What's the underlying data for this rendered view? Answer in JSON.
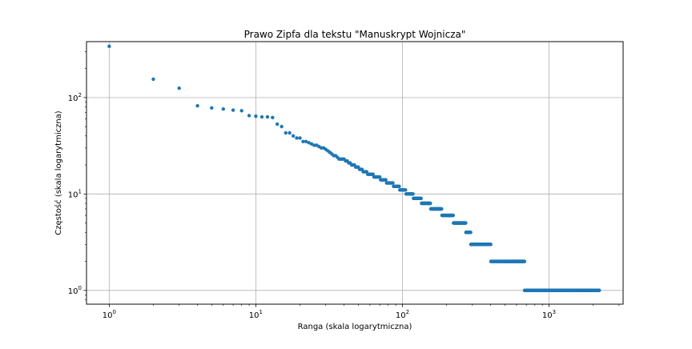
{
  "chart_data": {
    "type": "scatter",
    "title": "Prawo Zipfa dla tekstu \"Manuskrypt Wojnicza\"",
    "xlabel": "Ranga (skala logarytmiczna)",
    "ylabel": "Częstość (skala logarytmiczna)",
    "xscale": "log",
    "yscale": "log",
    "xlim": [
      0.7,
      3200
    ],
    "ylim": [
      0.72,
      380
    ],
    "grid": true,
    "marker_color": "#1f77b4",
    "x_ticks": [
      {
        "value": 1,
        "base": "10",
        "exp": "0"
      },
      {
        "value": 10,
        "base": "10",
        "exp": "1"
      },
      {
        "value": 100,
        "base": "10",
        "exp": "2"
      },
      {
        "value": 1000,
        "base": "10",
        "exp": "3"
      }
    ],
    "y_ticks": [
      {
        "value": 1,
        "base": "10",
        "exp": "0"
      },
      {
        "value": 10,
        "base": "10",
        "exp": "1"
      },
      {
        "value": 100,
        "base": "10",
        "exp": "2"
      }
    ],
    "points": [
      [
        1,
        340
      ],
      [
        2,
        155
      ],
      [
        3,
        125
      ],
      [
        4,
        82
      ],
      [
        5,
        78
      ],
      [
        6,
        76
      ],
      [
        7,
        74
      ],
      [
        8,
        73
      ],
      [
        9,
        65
      ],
      [
        10,
        64
      ],
      [
        11,
        63
      ],
      [
        12,
        63
      ],
      [
        13,
        62
      ],
      [
        14,
        53
      ],
      [
        15,
        50
      ],
      [
        16,
        43
      ],
      [
        17,
        43
      ],
      [
        18,
        40
      ],
      [
        19,
        38
      ],
      [
        20,
        38
      ],
      [
        21,
        35
      ],
      [
        22,
        35
      ],
      [
        23,
        34
      ],
      [
        24,
        33
      ],
      [
        25,
        32
      ],
      [
        26,
        32
      ],
      [
        27,
        31
      ],
      [
        28,
        30
      ],
      [
        29,
        30
      ],
      [
        30,
        29
      ],
      [
        31,
        28
      ],
      [
        32,
        27
      ],
      [
        33,
        26
      ],
      [
        34,
        25
      ],
      [
        35,
        25
      ],
      [
        36,
        24
      ],
      [
        37,
        23
      ],
      [
        38,
        23
      ],
      [
        39,
        23
      ],
      [
        40,
        23
      ],
      [
        41,
        22
      ],
      [
        42,
        22
      ],
      [
        43,
        21
      ],
      [
        44,
        21
      ],
      [
        45,
        20
      ],
      [
        46,
        20
      ],
      [
        47,
        20
      ],
      [
        48,
        19
      ],
      [
        49,
        19
      ],
      [
        50,
        19
      ],
      [
        51,
        18
      ],
      [
        52,
        18
      ],
      [
        53,
        18
      ],
      [
        54,
        17
      ],
      [
        55,
        17
      ],
      [
        56,
        17
      ],
      [
        57,
        17
      ],
      [
        58,
        16
      ],
      [
        59,
        16
      ],
      [
        60,
        16
      ],
      [
        61,
        16
      ],
      [
        62,
        16
      ],
      [
        63,
        16
      ]
    ],
    "ranges": [
      {
        "x_from": 64,
        "x_to": 70,
        "y": 15
      },
      {
        "x_from": 71,
        "x_to": 77,
        "y": 14
      },
      {
        "x_from": 78,
        "x_to": 86,
        "y": 13
      },
      {
        "x_from": 87,
        "x_to": 95,
        "y": 12
      },
      {
        "x_from": 96,
        "x_to": 105,
        "y": 11
      },
      {
        "x_from": 106,
        "x_to": 118,
        "y": 10
      },
      {
        "x_from": 119,
        "x_to": 134,
        "y": 9
      },
      {
        "x_from": 135,
        "x_to": 155,
        "y": 8
      },
      {
        "x_from": 156,
        "x_to": 185,
        "y": 7
      },
      {
        "x_from": 186,
        "x_to": 222,
        "y": 6
      },
      {
        "x_from": 223,
        "x_to": 270,
        "y": 5
      },
      {
        "x_from": 271,
        "x_to": 292,
        "y": 4
      },
      {
        "x_from": 293,
        "x_to": 400,
        "y": 3
      },
      {
        "x_from": 401,
        "x_to": 680,
        "y": 2
      },
      {
        "x_from": 681,
        "x_to": 2200,
        "y": 1
      }
    ]
  }
}
